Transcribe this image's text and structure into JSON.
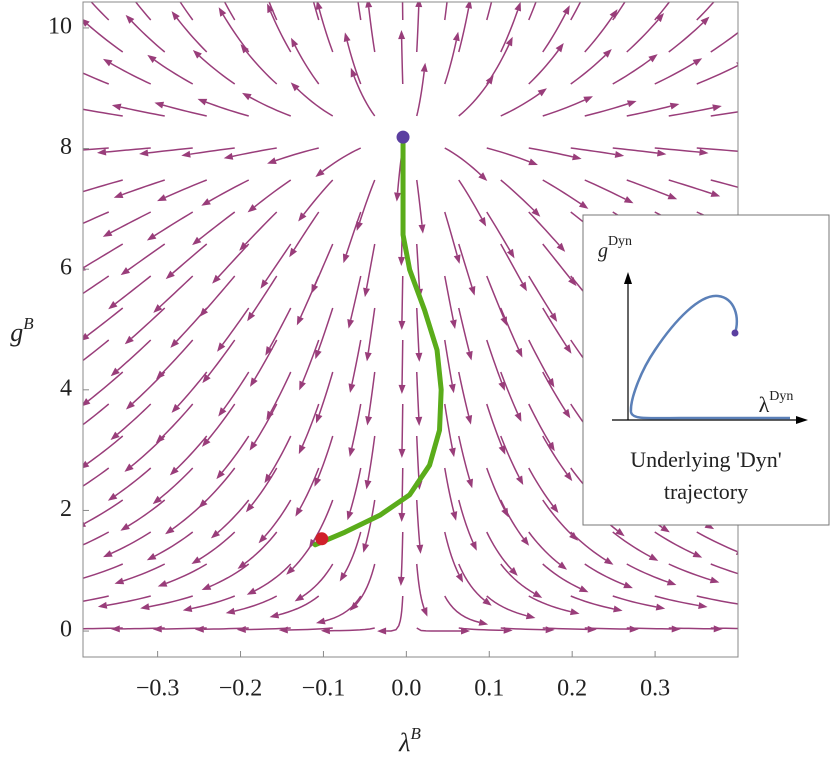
{
  "chart_data": {
    "type": "stream",
    "x_label": "λ",
    "x_label_sup": "B",
    "y_label": "g",
    "y_label_sup": "B",
    "xlim": [
      -0.39,
      0.4
    ],
    "ylim": [
      -0.43,
      10.43
    ],
    "xticks": [
      {
        "value": -0.3,
        "label": "−0.3"
      },
      {
        "value": -0.2,
        "label": "−0.2"
      },
      {
        "value": -0.1,
        "label": "−0.1"
      },
      {
        "value": 0,
        "label": "0.0"
      },
      0.1,
      0.2,
      0.3
    ],
    "yticks": [
      0,
      2,
      4,
      6,
      8,
      10
    ],
    "stream_color": "#993d7a",
    "trajectory": {
      "color": "#5aac1a",
      "x": [
        -0.004,
        -0.004,
        -0.004,
        0.004,
        0.022,
        0.037,
        0.042,
        0.04,
        0.028,
        0.004,
        -0.032,
        -0.074,
        -0.11
      ],
      "y": [
        8.19,
        8.06,
        6.57,
        5.99,
        5.32,
        4.66,
        4.0,
        3.33,
        2.75,
        2.26,
        1.92,
        1.64,
        1.43
      ]
    },
    "markers": [
      {
        "x": -0.004,
        "y": 8.19,
        "color": "#5b3fa0"
      },
      {
        "x": -0.102,
        "y": 1.53,
        "color": "#d0202a"
      }
    ],
    "inset": {
      "y_label": "g",
      "y_label_sup": "Dyn",
      "x_label": "λ",
      "x_label_sup": "Dyn",
      "caption": [
        "Underlying 'Dyn'",
        "trajectory"
      ],
      "curve_color": "#5b80b8",
      "dot_color": "#5b3fa0"
    }
  }
}
